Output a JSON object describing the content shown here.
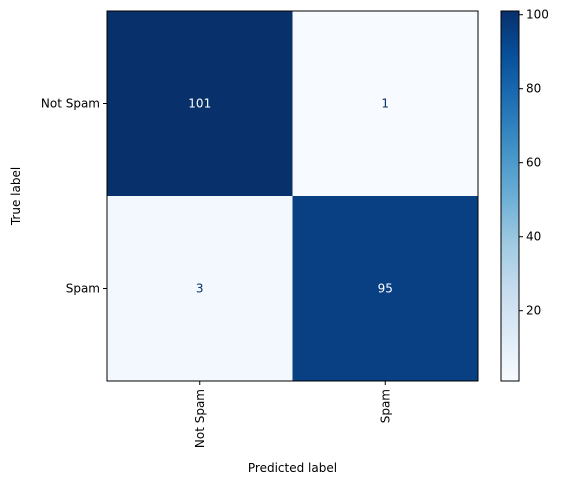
{
  "chart_data": {
    "type": "heatmap",
    "title": "",
    "xlabel": "Predicted label",
    "ylabel": "True label",
    "x_categories": [
      "Not Spam",
      "Spam"
    ],
    "y_categories": [
      "Not Spam",
      "Spam"
    ],
    "values": [
      [
        101,
        1
      ],
      [
        3,
        95
      ]
    ],
    "colormap": "Blues",
    "colorbar": {
      "min": 1,
      "max": 101,
      "ticks": [
        20,
        40,
        60,
        80,
        100
      ]
    },
    "grid": false,
    "text_color_dark_cell": "#ffffff",
    "text_color_light_cell": "#08306b"
  }
}
